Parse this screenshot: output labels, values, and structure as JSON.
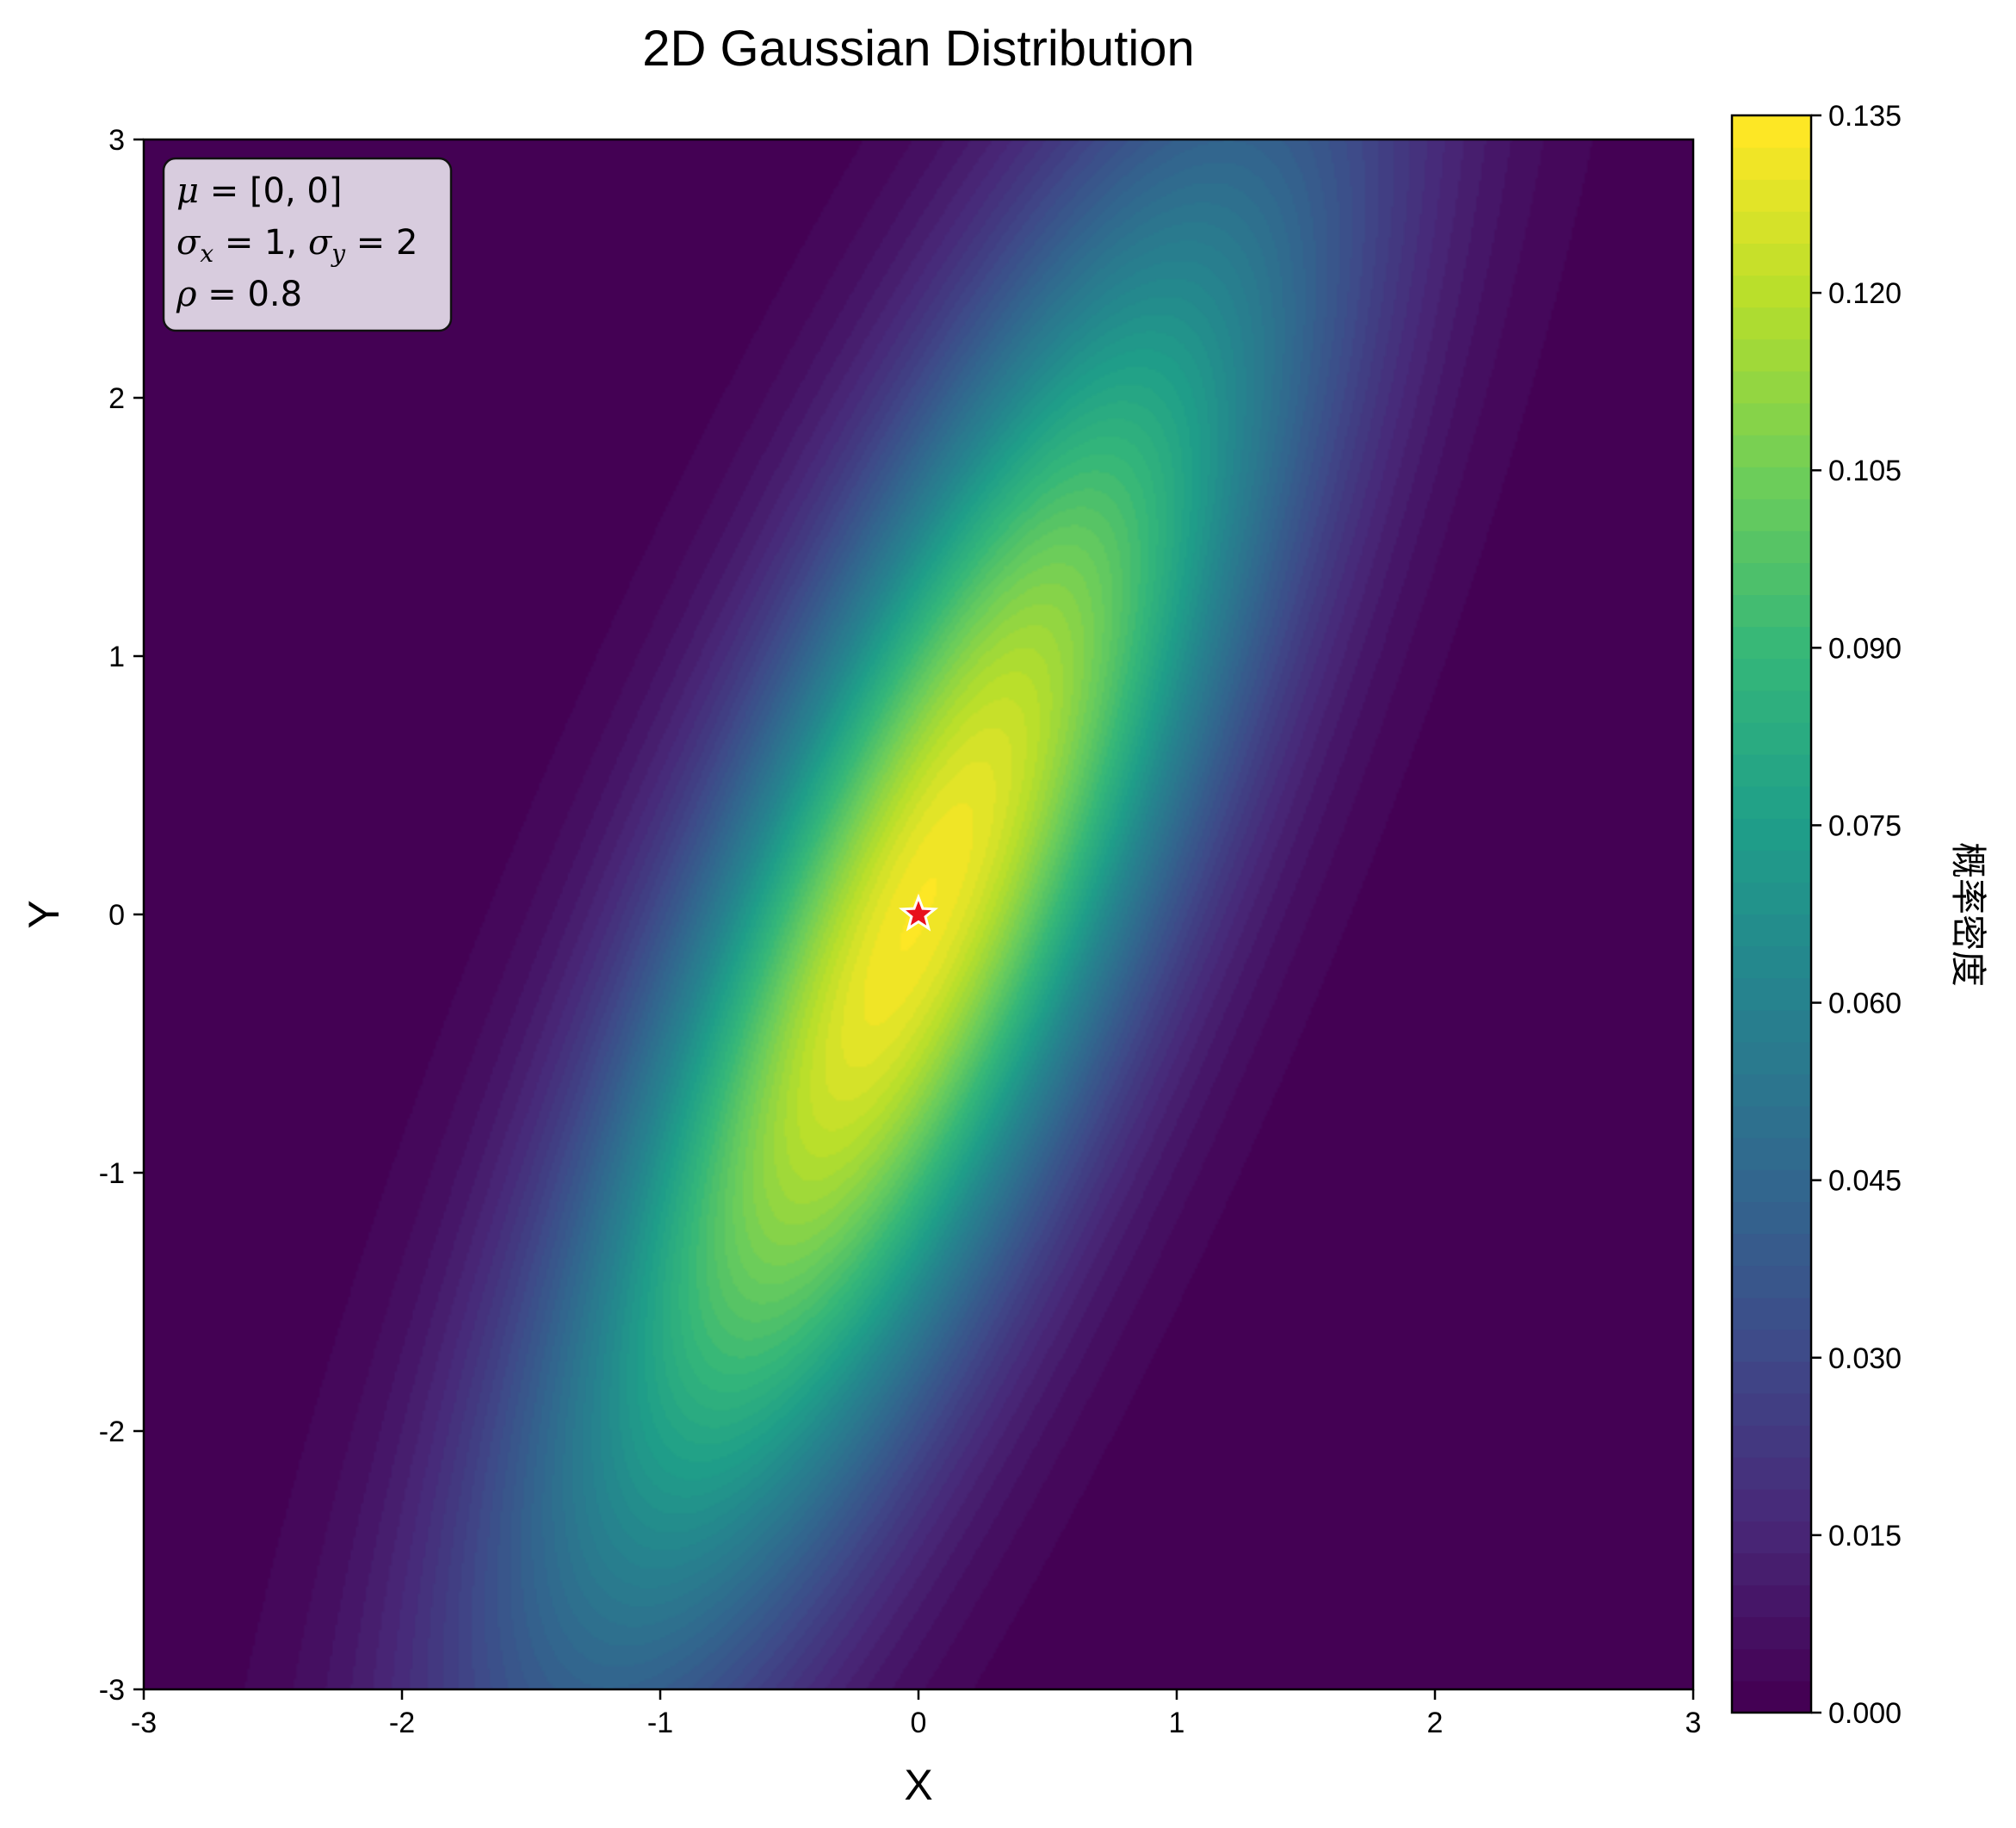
{
  "chart_data": {
    "type": "heatmap",
    "title": "2D Gaussian Distribution",
    "xlabel": "X",
    "ylabel": "Y",
    "xlim": [
      -3,
      3
    ],
    "ylim": [
      -3,
      3
    ],
    "x_ticks": [
      -3,
      -2,
      -1,
      0,
      1,
      2,
      3
    ],
    "x_tick_labels": [
      "-3",
      "-2",
      "-1",
      "0",
      "1",
      "2",
      "3"
    ],
    "y_ticks": [
      -3,
      -2,
      -1,
      0,
      1,
      2,
      3
    ],
    "y_tick_labels": [
      "-3",
      "-2",
      "-1",
      "0",
      "1",
      "2",
      "3"
    ],
    "distribution": {
      "mu": [
        0,
        0
      ],
      "sigma_x": 1,
      "sigma_y": 2,
      "rho": 0.8
    },
    "peak_marker": {
      "x": 0,
      "y": 0,
      "shape": "star",
      "color": "#e8101c"
    },
    "colorbar": {
      "label": "概率密度",
      "range": [
        0.0,
        0.135
      ],
      "ticks": [
        0.0,
        0.015,
        0.03,
        0.045,
        0.06,
        0.075,
        0.09,
        0.105,
        0.12,
        0.135
      ],
      "tick_labels": [
        "0.000",
        "0.015",
        "0.030",
        "0.045",
        "0.060",
        "0.075",
        "0.090",
        "0.105",
        "0.120",
        "0.135"
      ],
      "colormap": "viridis",
      "levels": 50
    },
    "annotation": {
      "line1": {
        "symbol": "μ",
        "rest": " = [0, 0]"
      },
      "line2": {
        "sym1": "σ",
        "sub1": "x",
        "mid": " = 1, ",
        "sym2": "σ",
        "sub2": "y",
        "rest": " = 2"
      },
      "line3": {
        "symbol": "ρ",
        "rest": " = 0.8"
      }
    },
    "grid": false
  }
}
